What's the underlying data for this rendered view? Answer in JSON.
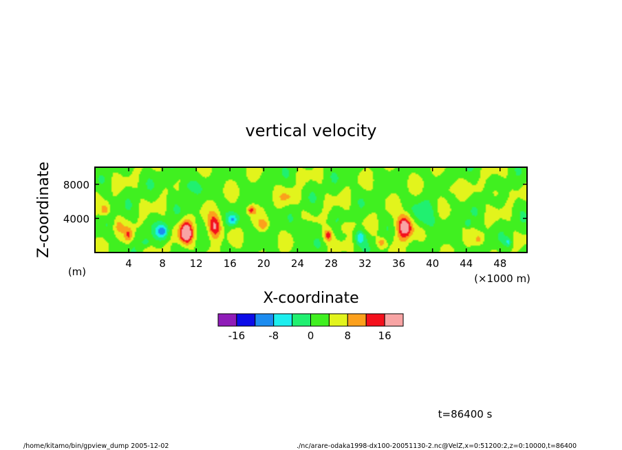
{
  "chart_data": {
    "type": "heatmap",
    "title": "vertical velocity",
    "xlabel": "X-coordinate",
    "ylabel": "Z-coordinate",
    "x_unit": "(×1000 m)",
    "y_unit": "(m)",
    "xlim": [
      0,
      51.2
    ],
    "ylim": [
      0,
      10000
    ],
    "x_ticks": [
      4,
      8,
      12,
      16,
      20,
      24,
      28,
      32,
      36,
      40,
      44,
      48
    ],
    "y_ticks": [
      4000,
      8000
    ],
    "colorbar": {
      "levels": [
        -20,
        -16,
        -12,
        -8,
        -4,
        0,
        4,
        8,
        12,
        16,
        20
      ],
      "tick_labels": [
        "-16",
        "-8",
        "0",
        "8",
        "16"
      ],
      "tick_values": [
        -16,
        -8,
        0,
        8,
        16
      ],
      "colors": [
        "#8f1cb8",
        "#0c0ce8",
        "#1c8cf0",
        "#1ceeee",
        "#20f070",
        "#40f020",
        "#e2f41c",
        "#fca01c",
        "#f4101c",
        "#f8a4a4"
      ]
    },
    "features": [
      {
        "x": 8.0,
        "z": 2500,
        "sx": 0.7,
        "sz": 900,
        "amp": -13
      },
      {
        "x": 10.8,
        "z": 2300,
        "sx": 0.8,
        "sz": 1300,
        "amp": 18
      },
      {
        "x": 14.2,
        "z": 3000,
        "sx": 0.8,
        "sz": 1400,
        "amp": 14
      },
      {
        "x": 16.3,
        "z": 3800,
        "sx": 0.6,
        "sz": 700,
        "amp": -11
      },
      {
        "x": 18.5,
        "z": 5000,
        "sx": 0.5,
        "sz": 500,
        "amp": 10
      },
      {
        "x": 27.6,
        "z": 2000,
        "sx": 0.5,
        "sz": 700,
        "amp": 11
      },
      {
        "x": 31.4,
        "z": 1800,
        "sx": 0.6,
        "sz": 800,
        "amp": -10
      },
      {
        "x": 36.7,
        "z": 3000,
        "sx": 0.9,
        "sz": 1400,
        "amp": 19
      },
      {
        "x": 39.0,
        "z": 4200,
        "sx": 1.5,
        "sz": 1500,
        "amp": -6
      },
      {
        "x": 4.0,
        "z": 2000,
        "sx": 0.5,
        "sz": 900,
        "amp": 9
      },
      {
        "x": 1.2,
        "z": 5000,
        "sx": 0.5,
        "sz": 600,
        "amp": 8
      },
      {
        "x": 2.8,
        "z": 3000,
        "sx": 0.6,
        "sz": 800,
        "amp": 5
      },
      {
        "x": 44.2,
        "z": 3400,
        "sx": 0.4,
        "sz": 500,
        "amp": -7
      },
      {
        "x": 47.5,
        "z": 7000,
        "sx": 0.5,
        "sz": 600,
        "amp": 6
      },
      {
        "x": 23.0,
        "z": 6500,
        "sx": 1.2,
        "sz": 900,
        "amp": 4
      },
      {
        "x": 42.0,
        "z": 7500,
        "sx": 1.2,
        "sz": 900,
        "amp": 4
      },
      {
        "x": 11.0,
        "z": 7800,
        "sx": 1.0,
        "sz": 900,
        "amp": -5
      },
      {
        "x": 34.0,
        "z": 1200,
        "sx": 0.5,
        "sz": 500,
        "amp": 8
      },
      {
        "x": 6.0,
        "z": 1200,
        "sx": 0.5,
        "sz": 500,
        "amp": -6
      },
      {
        "x": 20.0,
        "z": 3200,
        "sx": 0.6,
        "sz": 700,
        "amp": 7
      },
      {
        "x": 25.0,
        "z": 3000,
        "sx": 0.8,
        "sz": 800,
        "amp": -5
      },
      {
        "x": 29.5,
        "z": 3000,
        "sx": 0.6,
        "sz": 700,
        "amp": 6
      },
      {
        "x": 49.0,
        "z": 1200,
        "sx": 0.4,
        "sz": 500,
        "amp": -7
      },
      {
        "x": 45.5,
        "z": 1500,
        "sx": 0.5,
        "sz": 600,
        "amp": 6
      }
    ]
  },
  "footer": {
    "time_label": "t=86400 s",
    "left_path": "/home/kitamo/bin/gpview_dump  2005-12-02",
    "right_path": "./nc/arare-odaka1998-dx100-20051130-2.nc@VelZ,x=0:51200:2,z=0:10000,t=86400"
  }
}
